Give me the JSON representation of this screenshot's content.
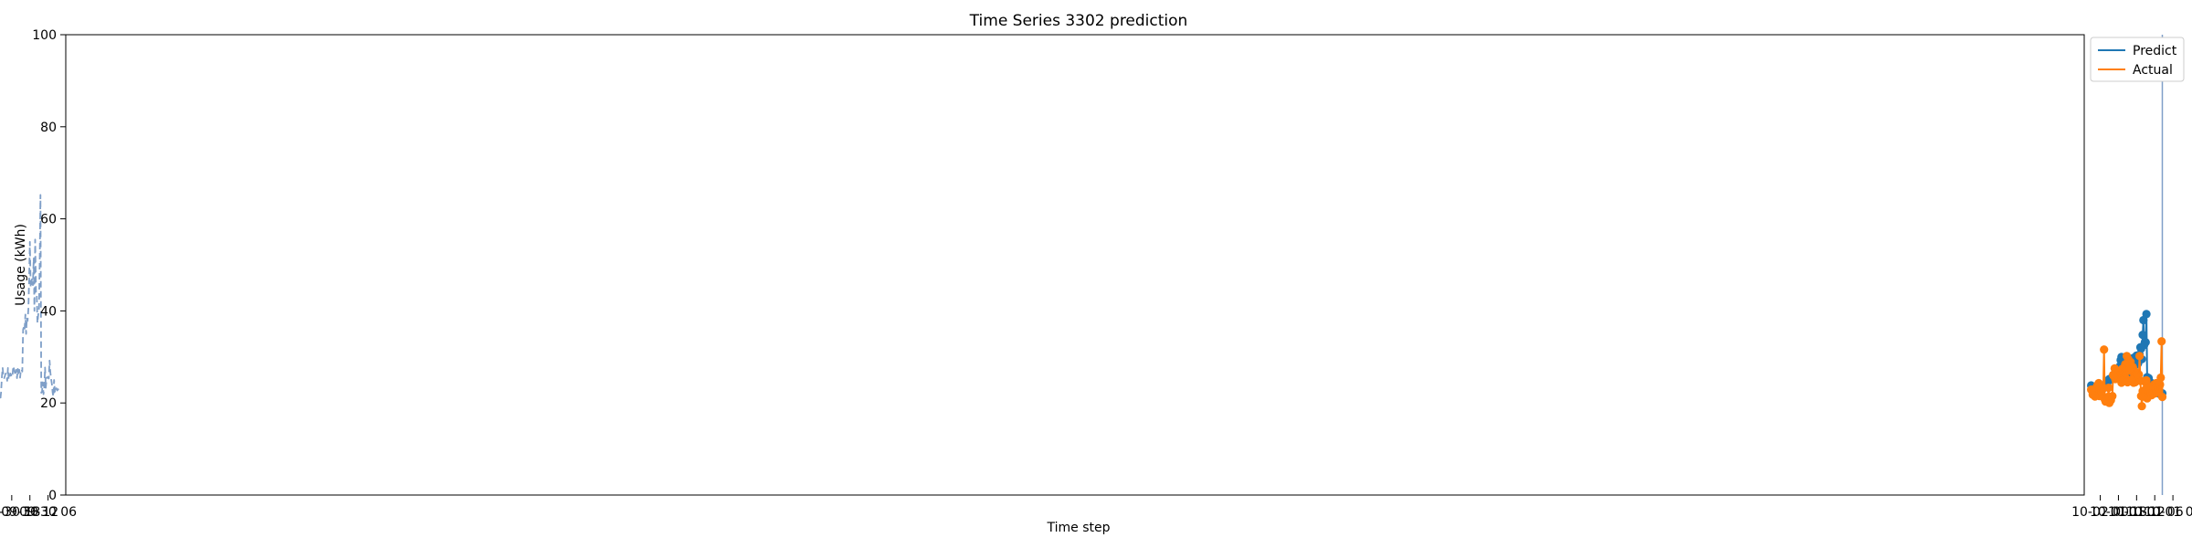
{
  "chart_data": {
    "type": "line",
    "title": "Time Series 3302 prediction",
    "xlabel": "Time step",
    "ylabel": "Usage (kWh)",
    "ylim": [
      0,
      100
    ],
    "yticks": [
      0,
      20,
      40,
      60,
      80,
      100
    ],
    "xlim": [
      "09-30 00:09",
      "10-02 05:18"
    ],
    "xticks": [
      "09-30 06",
      "09-30 12",
      "09-30 18",
      "10-01 00",
      "10-01 06",
      "10-01 12",
      "10-01 18",
      "10-02 00"
    ],
    "grid": false,
    "legend": {
      "placement": "top-right-outside",
      "entries": [
        "Predict",
        "Actual"
      ]
    },
    "split_time": "10-01 03:30",
    "colors": {
      "predict": "#1f77b4",
      "actual": "#ff7f0e",
      "history": "#7f9fc8",
      "split": "#7f9fc8"
    },
    "series": [
      {
        "name": "",
        "style": "dashed",
        "start": "09-30 02:30",
        "interval_min": 15,
        "values": [
          23.1,
          22.9,
          22.7,
          23.2,
          22.2,
          22.4,
          25.0,
          21.4,
          22.3,
          24.1,
          25.3,
          26.7,
          29.2,
          25.3,
          25.5,
          25.6,
          25.3,
          23.3,
          27.7,
          23.4,
          21.9,
          24.5,
          22.4,
          22.2,
          65.2,
          51.0,
          40.6,
          39.0,
          37.4,
          43.7,
          44.0,
          55.5,
          40.0,
          51.4,
          45.6,
          47.1,
          46.1,
          45.1,
          55.0,
          47.0,
          40.5,
          37.8,
          38.5,
          35.0,
          39.2,
          35.9,
          36.5,
          36.0,
          26.8,
          27.3,
          27.1,
          25.5,
          27.2,
          26.0,
          27.4,
          25.4,
          27.2,
          26.0,
          26.6,
          27.4,
          28.0,
          26.2,
          25.6,
          26.2,
          26.4,
          25.7,
          25.1,
          27.6,
          24.8,
          26.1,
          26.4,
          25.9,
          25.4,
          25.9,
          27.6,
          25.8,
          22.4,
          20.8,
          20.6,
          21.8,
          22.3,
          22.7,
          22.3,
          21.7,
          21.6,
          21.2,
          22.1,
          21.1,
          21.3,
          21.4,
          21.7,
          21.6,
          21.3,
          21.6,
          21.6,
          21.7,
          21.8,
          19.9,
          21.5,
          23.2,
          22.0
        ]
      },
      {
        "name": "Predict",
        "style": "line-marker",
        "start": "10-01 03:30",
        "interval_min": 15,
        "values": [
          22.1,
          21.7,
          22.0,
          22.3,
          22.0,
          22.2,
          22.8,
          22.6,
          23.0,
          23.3,
          23.8,
          23.4,
          23.9,
          23.6,
          24.3,
          24.0,
          23.5,
          24.5,
          25.4,
          25.0,
          25.6,
          39.3,
          33.2,
          33.2,
          32.6,
          38.0,
          34.8,
          29.5,
          31.8,
          32.1,
          30.5,
          29.6,
          28.6,
          30.3,
          30.3,
          29.0,
          28.2,
          28.5,
          29.8,
          28.1,
          28.5,
          29.0,
          28.5,
          28.6,
          27.0,
          26.5,
          26.0,
          26.2,
          26.6,
          27.4,
          27.9,
          29.7,
          29.5,
          29.4,
          30.0,
          29.3,
          28.0,
          27.5,
          27.2,
          27.1,
          26.9,
          26.2,
          25.6,
          26.3,
          26.2,
          25.9,
          25.6,
          25.4,
          25.3,
          25.0,
          25.2,
          24.8,
          24.9,
          24.6,
          24.2,
          23.6,
          23.5,
          23.3,
          23.3,
          23.1,
          23.1,
          22.9,
          22.6,
          22.6,
          22.9,
          22.7,
          22.5,
          22.6,
          22.4,
          22.7,
          22.8,
          23.5,
          23.1,
          23.5,
          23.8
        ]
      },
      {
        "name": "Actual",
        "style": "line-marker",
        "start": "10-01 03:30",
        "interval_min": 15,
        "values": [
          21.3,
          33.4,
          25.5,
          24.0,
          23.6,
          22.8,
          23.1,
          22.4,
          24.3,
          22.1,
          23.3,
          24.0,
          22.8,
          23.6,
          21.7,
          22.4,
          23.5,
          21.9,
          23.3,
          22.4,
          21.0,
          24.9,
          23.0,
          24.8,
          24.7,
          21.4,
          22.6,
          19.3,
          21.5,
          24.8,
          30.2,
          26.2,
          25.7,
          25.0,
          26.2,
          26.0,
          24.5,
          27.0,
          24.4,
          27.8,
          25.1,
          25.0,
          28.9,
          27.0,
          27.2,
          29.5,
          24.5,
          30.2,
          25.3,
          28.4,
          25.0,
          27.3,
          26.1,
          27.4,
          24.4,
          26.2,
          26.3,
          25.3,
          26.3,
          26.6,
          26.1,
          26.0,
          25.2,
          27.5,
          25.8,
          26.1,
          21.5,
          21.3,
          20.6,
          21.0,
          20.0,
          23.3,
          21.3,
          21.0,
          21.2,
          20.3,
          20.8,
          31.6,
          23.3,
          23.0,
          22.8,
          22.5,
          22.0,
          21.5,
          24.3,
          24.0,
          23.8,
          22.7,
          23.1,
          21.4,
          23.0,
          22.5,
          21.8,
          22.7,
          22.9
        ]
      }
    ]
  }
}
